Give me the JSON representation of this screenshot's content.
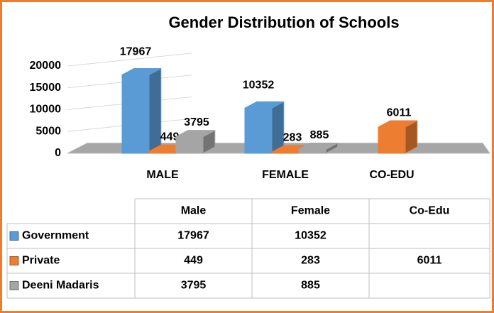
{
  "chart_data": {
    "type": "bar3d",
    "title": "Gender Distribution of Schools",
    "categories": [
      "MALE",
      "FEMALE",
      "CO-EDU"
    ],
    "series": [
      {
        "name": "Government",
        "color": "#5b9bd5",
        "values": [
          17967,
          10352,
          null
        ]
      },
      {
        "name": "Private",
        "color": "#ed7d31",
        "values": [
          449,
          283,
          6011
        ]
      },
      {
        "name": "Deeni Madaris",
        "color": "#a5a5a5",
        "values": [
          3795,
          885,
          null
        ]
      }
    ],
    "ylim": [
      0,
      20000
    ],
    "yticks": [
      0,
      5000,
      10000,
      15000,
      20000
    ],
    "grid": true,
    "table_columns": [
      "Male",
      "Female",
      "Co-Edu"
    ]
  }
}
